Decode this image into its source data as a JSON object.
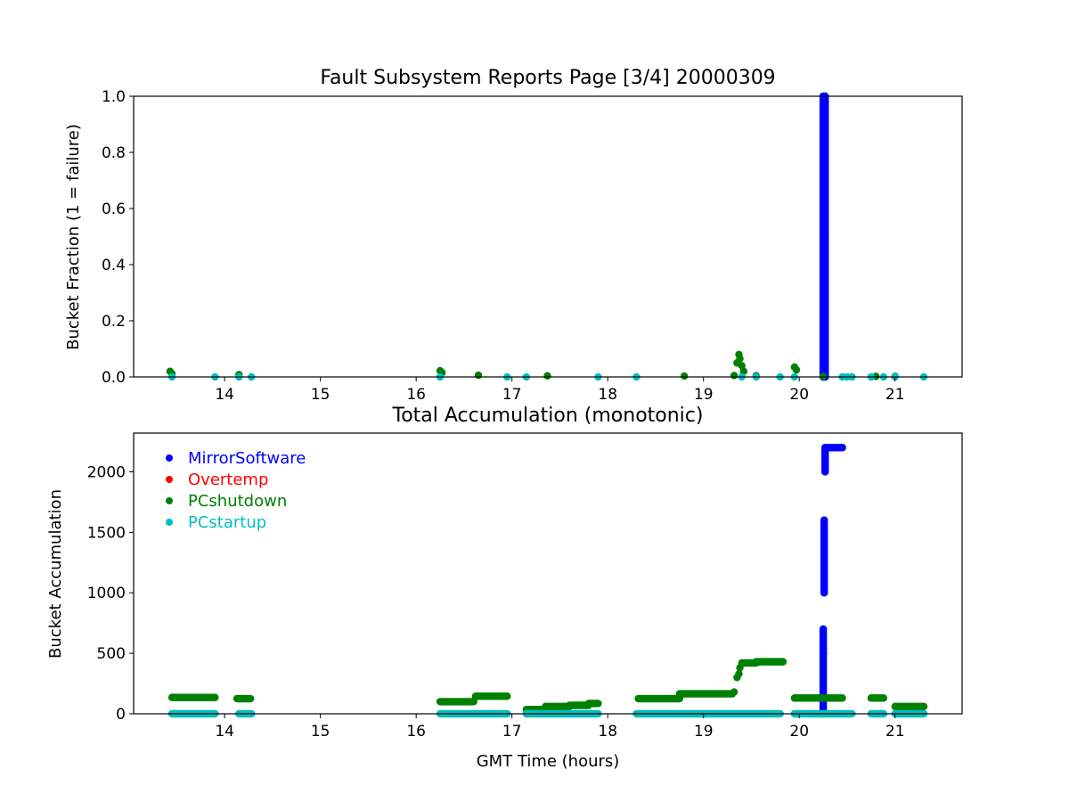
{
  "chart_data": [
    {
      "type": "scatter",
      "title": "Fault Subsystem Reports Page [3/4] 20000309",
      "xlabel": "",
      "ylabel": "Bucket Fraction (1 = failure)",
      "xlim": [
        13.05,
        21.7
      ],
      "ylim": [
        0,
        1.0
      ],
      "x_ticks": [
        "14",
        "15",
        "16",
        "17",
        "18",
        "19",
        "20",
        "21"
      ],
      "y_ticks": [
        "0.0",
        "0.2",
        "0.4",
        "0.6",
        "0.8",
        "1.0"
      ],
      "grid": false,
      "series": [
        {
          "name": "MirrorSoftware",
          "color": "#0000ff",
          "points": [
            [
              20.25,
              0.0
            ],
            [
              20.25,
              0.1
            ],
            [
              20.25,
              0.2
            ],
            [
              20.25,
              0.3
            ],
            [
              20.25,
              0.4
            ],
            [
              20.25,
              0.5
            ],
            [
              20.25,
              0.55
            ],
            [
              20.25,
              0.6
            ],
            [
              20.25,
              0.65
            ],
            [
              20.25,
              0.7
            ],
            [
              20.25,
              0.8
            ],
            [
              20.25,
              0.9
            ],
            [
              20.25,
              1.0
            ],
            [
              20.27,
              0.0
            ],
            [
              20.27,
              0.5
            ],
            [
              20.27,
              1.0
            ]
          ]
        },
        {
          "name": "Overtemp",
          "color": "#ff0000",
          "points": []
        },
        {
          "name": "PCshutdown",
          "color": "#008000",
          "points": [
            [
              13.43,
              0.02
            ],
            [
              13.45,
              0.012
            ],
            [
              14.15,
              0.008
            ],
            [
              16.25,
              0.022
            ],
            [
              16.27,
              0.015
            ],
            [
              16.65,
              0.006
            ],
            [
              17.37,
              0.004
            ],
            [
              18.8,
              0.003
            ],
            [
              19.32,
              0.005
            ],
            [
              19.35,
              0.05
            ],
            [
              19.37,
              0.08
            ],
            [
              19.38,
              0.065
            ],
            [
              19.4,
              0.04
            ],
            [
              19.42,
              0.02
            ],
            [
              19.55,
              0.004
            ],
            [
              19.95,
              0.035
            ],
            [
              19.97,
              0.025
            ],
            [
              20.25,
              0.002
            ],
            [
              20.8,
              0.002
            ],
            [
              21.0,
              0.002
            ]
          ]
        },
        {
          "name": "PCstartup",
          "color": "#00bfbf",
          "points": [
            [
              13.45,
              0.0
            ],
            [
              13.9,
              0.0
            ],
            [
              14.15,
              0.0
            ],
            [
              14.28,
              0.0
            ],
            [
              16.25,
              0.0
            ],
            [
              16.95,
              0.0
            ],
            [
              17.15,
              0.0
            ],
            [
              17.9,
              0.0
            ],
            [
              18.3,
              0.0
            ],
            [
              19.4,
              0.0
            ],
            [
              19.55,
              0.0
            ],
            [
              19.8,
              0.0
            ],
            [
              19.95,
              0.0
            ],
            [
              20.45,
              0.0
            ],
            [
              20.5,
              0.0
            ],
            [
              20.55,
              0.0
            ],
            [
              20.75,
              0.0
            ],
            [
              20.88,
              0.0
            ],
            [
              21.0,
              0.0
            ],
            [
              21.3,
              0.0
            ]
          ]
        }
      ]
    },
    {
      "type": "scatter",
      "title": "Total Accumulation (monotonic)",
      "xlabel": "GMT Time (hours)",
      "ylabel": "Bucket Accumulation",
      "xlim": [
        13.05,
        21.7
      ],
      "ylim": [
        0,
        2320
      ],
      "x_ticks": [
        "14",
        "15",
        "16",
        "17",
        "18",
        "19",
        "20",
        "21"
      ],
      "y_ticks": [
        "0",
        "500",
        "1000",
        "1500",
        "2000"
      ],
      "grid": false,
      "legend": "top-left",
      "series": [
        {
          "name": "MirrorSoftware",
          "color": "#0000ff",
          "points": [
            [
              20.25,
              0
            ],
            [
              20.25,
              500
            ],
            [
              20.25,
              700
            ],
            [
              20.26,
              1000
            ],
            [
              20.26,
              1600
            ],
            [
              20.27,
              2000
            ],
            [
              20.27,
              2200
            ],
            [
              20.45,
              2200
            ]
          ]
        },
        {
          "name": "Overtemp",
          "color": "#ff0000",
          "points": []
        },
        {
          "name": "PCshutdown",
          "color": "#008000",
          "segments": [
            {
              "x0": 13.45,
              "x1": 13.9,
              "y": 135
            },
            {
              "x0": 14.13,
              "x1": 14.27,
              "y": 125
            },
            {
              "x0": 16.25,
              "x1": 16.6,
              "y": 100
            },
            {
              "x0": 16.62,
              "x1": 16.95,
              "y": 145
            },
            {
              "x0": 17.15,
              "x1": 17.35,
              "y": 35
            },
            {
              "x0": 17.35,
              "x1": 17.6,
              "y": 60
            },
            {
              "x0": 17.6,
              "x1": 17.8,
              "y": 70
            },
            {
              "x0": 17.8,
              "x1": 17.9,
              "y": 85
            },
            {
              "x0": 18.32,
              "x1": 18.75,
              "y": 125
            },
            {
              "x0": 18.75,
              "x1": 19.3,
              "y": 165
            },
            {
              "x0": 19.4,
              "x1": 19.55,
              "y": 420
            },
            {
              "x0": 19.55,
              "x1": 19.83,
              "y": 430
            },
            {
              "x0": 19.95,
              "x1": 20.45,
              "y": 130
            },
            {
              "x0": 20.75,
              "x1": 20.88,
              "y": 130
            },
            {
              "x0": 21.0,
              "x1": 21.3,
              "y": 60
            }
          ],
          "points": [
            [
              19.32,
              180
            ],
            [
              19.35,
              300
            ],
            [
              19.37,
              330
            ],
            [
              19.38,
              380
            ]
          ]
        },
        {
          "name": "PCstartup",
          "color": "#00bfbf",
          "segments": [
            {
              "x0": 13.45,
              "x1": 13.9,
              "y": 0
            },
            {
              "x0": 14.15,
              "x1": 14.28,
              "y": 0
            },
            {
              "x0": 16.25,
              "x1": 16.95,
              "y": 0
            },
            {
              "x0": 17.15,
              "x1": 17.9,
              "y": 0
            },
            {
              "x0": 18.3,
              "x1": 19.8,
              "y": 0
            },
            {
              "x0": 19.95,
              "x1": 20.55,
              "y": 0
            },
            {
              "x0": 20.75,
              "x1": 20.88,
              "y": 0
            },
            {
              "x0": 21.0,
              "x1": 21.3,
              "y": 0
            }
          ]
        }
      ]
    }
  ]
}
